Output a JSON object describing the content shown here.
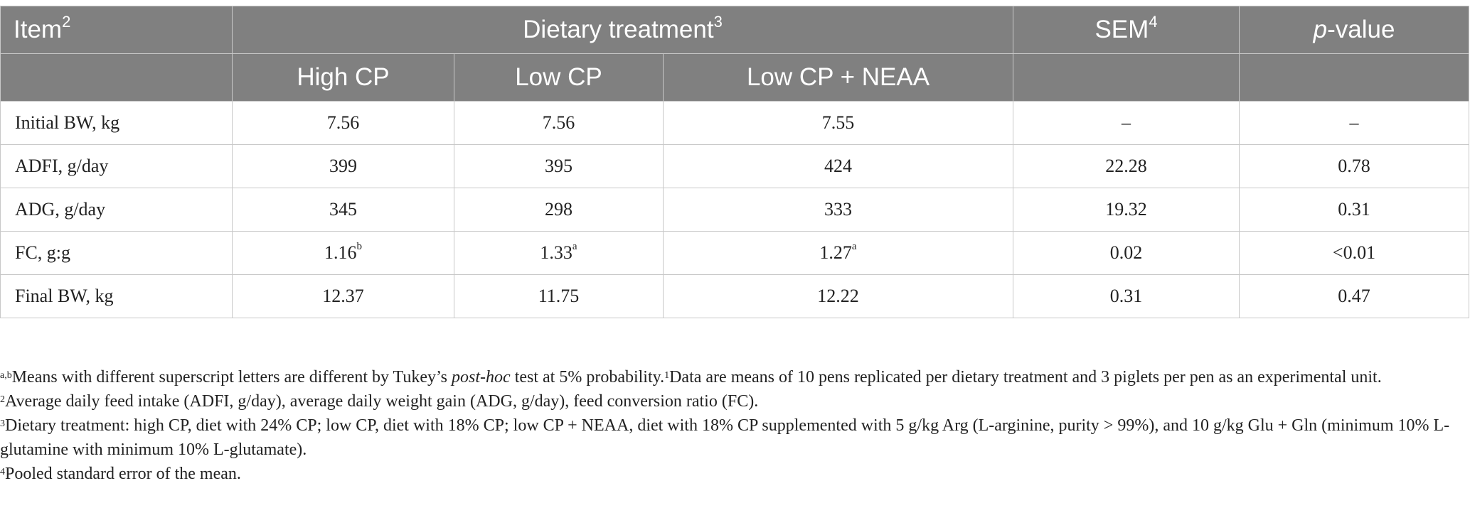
{
  "table": {
    "header": {
      "item": "Item",
      "item_sup": "2",
      "dietary": "Dietary treatment",
      "dietary_sup": "3",
      "sem": "SEM",
      "sem_sup": "4",
      "pvalue_italic": "p",
      "pvalue_rest": "-value",
      "sub": [
        "High CP",
        "Low CP",
        "Low CP + NEAA"
      ]
    },
    "rows": [
      {
        "item": "Initial BW, kg",
        "high": "7.56",
        "high_sup": "",
        "low": "7.56",
        "low_sup": "",
        "neaa": "7.55",
        "neaa_sup": "",
        "sem": "–",
        "p": "–"
      },
      {
        "item": "ADFI, g/day",
        "high": "399",
        "high_sup": "",
        "low": "395",
        "low_sup": "",
        "neaa": "424",
        "neaa_sup": "",
        "sem": "22.28",
        "p": "0.78"
      },
      {
        "item": "ADG, g/day",
        "high": "345",
        "high_sup": "",
        "low": "298",
        "low_sup": "",
        "neaa": "333",
        "neaa_sup": "",
        "sem": "19.32",
        "p": "0.31"
      },
      {
        "item": "FC, g:g",
        "high": "1.16",
        "high_sup": "b",
        "low": "1.33",
        "low_sup": "a",
        "neaa": "1.27",
        "neaa_sup": "a",
        "sem": "0.02",
        "p": "<0.01"
      },
      {
        "item": "Final BW, kg",
        "high": "12.37",
        "high_sup": "",
        "low": "11.75",
        "low_sup": "",
        "neaa": "12.22",
        "neaa_sup": "",
        "sem": "0.31",
        "p": "0.47"
      }
    ]
  },
  "footnotes": {
    "f1_sup": "a,b",
    "f1_a": "Means with different superscript letters are different by Tukey’s ",
    "f1_italic": "post-hoc",
    "f1_b": " test at 5% probability.",
    "f1_sup2": "1",
    "f1_c": "Data are means of 10 pens replicated per dietary treatment and 3 piglets per pen as an experimental unit.",
    "f2_sup": "2",
    "f2": "Average daily feed intake (ADFI, g/day), average daily weight gain (ADG, g/day), feed conversion ratio (FC).",
    "f3_sup": "3",
    "f3": "Dietary treatment: high CP, diet with 24% CP; low CP, diet with 18% CP; low CP + NEAA, diet with 18% CP supplemented with 5 g/kg Arg (L-arginine, purity > 99%), and 10 g/kg Glu + Gln (minimum 10% L-glutamine with minimum 10% L-glutamate).",
    "f4_sup": "4",
    "f4": "Pooled standard error of the mean."
  }
}
